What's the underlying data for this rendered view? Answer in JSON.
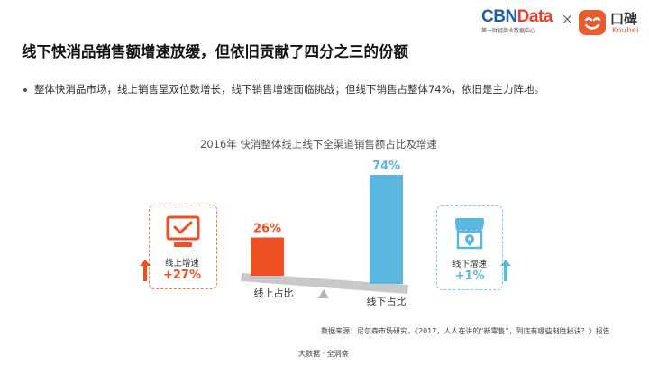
{
  "header": {
    "cbn_logo_main_blue": "CBN",
    "cbn_logo_main_red": "Data",
    "cbn_logo_sub": "第一财经商业数据中心",
    "times": "×",
    "koubei_logo_cn": "口碑",
    "koubei_logo_en": "Koubei"
  },
  "title": "线下快消品销售额增速放缓，但依旧贡献了四分之三的份额",
  "bullet": "整体快消品市场，线上销售呈双位数增长，线下销售增速面临挑战；但线下销售占整体74%，依旧是主力阵地。",
  "chart_data": {
    "type": "bar",
    "title": "2016年 快消整体线上线下全渠道销售额占比及增速",
    "categories": [
      "线上占比",
      "线下占比"
    ],
    "values": [
      26,
      74
    ],
    "value_labels": [
      "26%",
      "74%"
    ],
    "colors": [
      "#f04e23",
      "#5ab7e0"
    ],
    "growth": [
      {
        "label": "线上增速",
        "value": "+27%",
        "color": "#f04e23"
      },
      {
        "label": "线下增速",
        "value": "+1%",
        "color": "#5ab7e0"
      }
    ]
  },
  "icons": {
    "online": "monitor-check-icon",
    "offline": "store-location-icon",
    "online_arrow": "arrow-up-icon",
    "offline_arrow": "arrow-up-icon"
  },
  "source": "数据来源：尼尔森市场研究，《2017，人人在讲的“新零售”，到底有哪些制胜秘诀？》报告",
  "footer": "大数据 · 全洞察"
}
